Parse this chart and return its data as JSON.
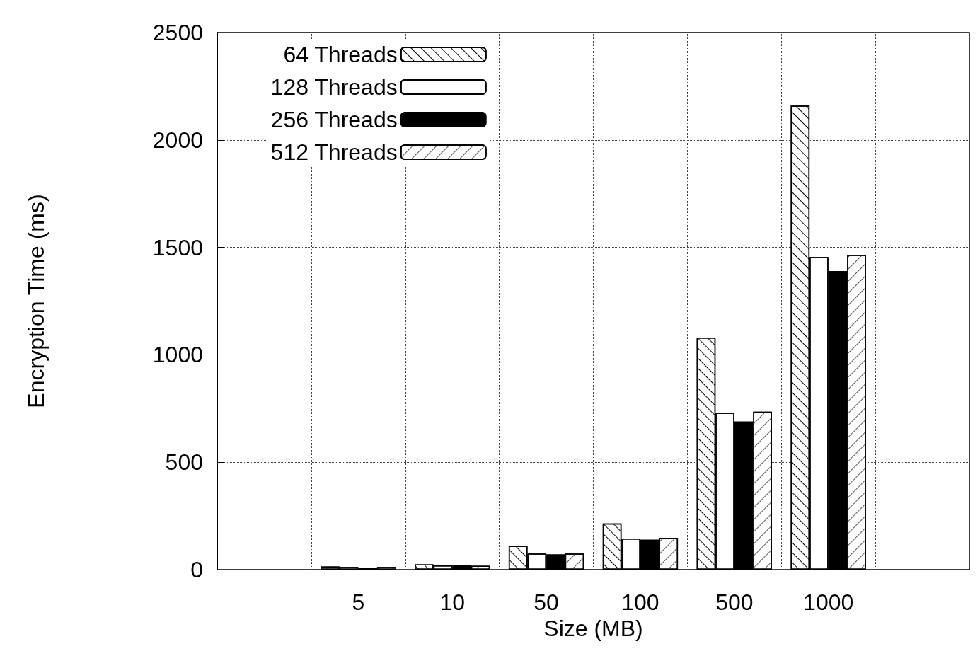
{
  "chart_data": {
    "type": "bar",
    "xlabel": "Size (MB)",
    "ylabel": "Encryption Time (ms)",
    "categories": [
      "5",
      "10",
      "50",
      "100",
      "500",
      "1000"
    ],
    "series": [
      {
        "name": "64 Threads",
        "color": "#ffffff",
        "values": [
          15,
          25,
          110,
          215,
          1080,
          2160
        ]
      },
      {
        "name": "128 Threads",
        "color": "#ffffff",
        "values": [
          12,
          20,
          75,
          145,
          730,
          1455
        ]
      },
      {
        "name": "256 Threads",
        "color": "#000000",
        "values": [
          10,
          20,
          72,
          140,
          690,
          1390
        ]
      },
      {
        "name": "512 Threads",
        "color": "#ffffff",
        "values": [
          12,
          18,
          75,
          148,
          735,
          1465
        ]
      }
    ],
    "ylim": [
      0,
      2500
    ],
    "yticks": [
      0,
      500,
      1000,
      1500,
      2000,
      2500
    ],
    "grid": true,
    "legend": "top left"
  }
}
